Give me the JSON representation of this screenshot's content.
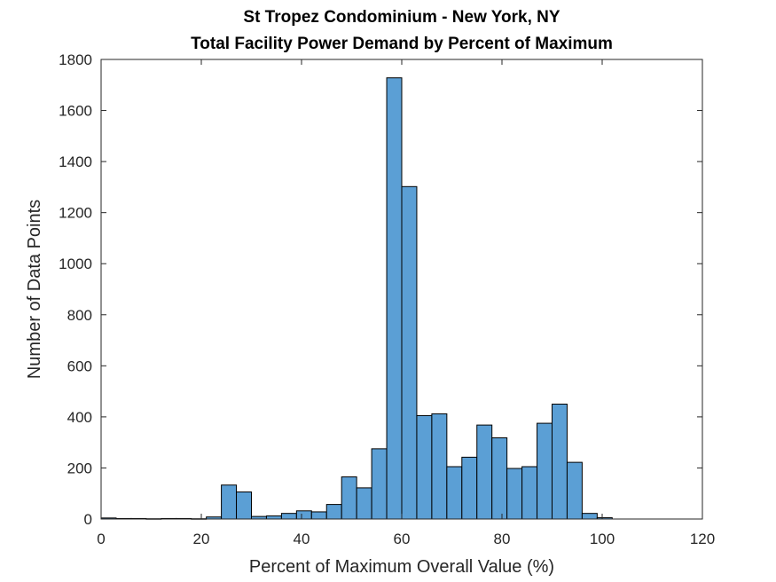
{
  "chart_data": {
    "type": "bar",
    "title": [
      "St Tropez Condominium - New York, NY",
      "Total Facility Power Demand by Percent of Maximum"
    ],
    "xlabel": "Percent of Maximum Overall Value (%)",
    "ylabel": "Number of Data Points",
    "xlim": [
      0,
      120
    ],
    "ylim": [
      0,
      1800
    ],
    "xticks": [
      0,
      20,
      40,
      60,
      80,
      100,
      120
    ],
    "yticks": [
      0,
      200,
      400,
      600,
      800,
      1000,
      1200,
      1400,
      1600,
      1800
    ],
    "bin_width": 3,
    "bin_start": 0,
    "values": [
      4,
      2,
      2,
      1,
      2,
      2,
      1,
      8,
      133,
      106,
      10,
      12,
      22,
      32,
      28,
      57,
      165,
      122,
      275,
      1728,
      1302,
      405,
      412,
      205,
      242,
      368,
      318,
      198,
      205,
      375,
      450,
      222,
      22,
      5,
      0,
      0,
      0,
      0,
      0,
      0
    ],
    "bar_color": "#5b9fd5",
    "grid": false,
    "legend": "none"
  }
}
